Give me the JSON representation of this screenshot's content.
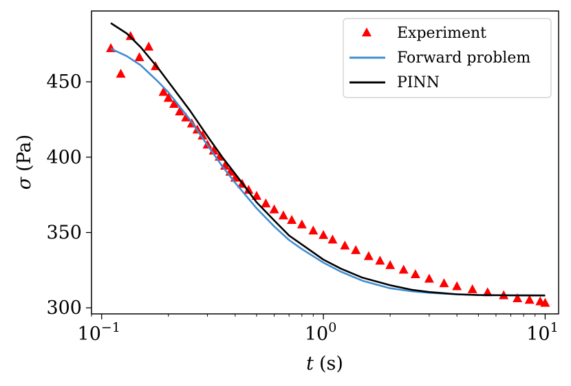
{
  "chart_data": {
    "type": "scatter",
    "xlabel": "t (s)",
    "xlabel_symbol": "t",
    "xlabel_unit": "(s)",
    "ylabel": "σ (Pa)",
    "ylabel_symbol": "σ",
    "ylabel_unit": "(Pa)",
    "x_scale": "log",
    "xlim": [
      0.09,
      11.5
    ],
    "ylim": [
      296,
      497
    ],
    "x_ticks": [
      {
        "value": 0.1,
        "base": "10",
        "exp": "−1"
      },
      {
        "value": 1,
        "base": "10",
        "exp": "0"
      },
      {
        "value": 10,
        "base": "10",
        "exp": "1"
      }
    ],
    "y_ticks": [
      {
        "value": 300,
        "label": "300"
      },
      {
        "value": 350,
        "label": "350"
      },
      {
        "value": 400,
        "label": "400"
      },
      {
        "value": 450,
        "label": "450"
      }
    ],
    "grid": false,
    "legend_position": "top-right",
    "series": [
      {
        "name": "Experiment",
        "kind": "scatter",
        "marker": "triangle",
        "color": "#ff0000",
        "x": [
          0.11,
          0.122,
          0.135,
          0.148,
          0.163,
          0.175,
          0.19,
          0.2,
          0.212,
          0.225,
          0.24,
          0.255,
          0.27,
          0.285,
          0.3,
          0.32,
          0.34,
          0.36,
          0.38,
          0.4,
          0.43,
          0.46,
          0.5,
          0.55,
          0.6,
          0.66,
          0.72,
          0.8,
          0.9,
          1.0,
          1.1,
          1.25,
          1.4,
          1.6,
          1.8,
          2.0,
          2.3,
          2.6,
          3.0,
          3.5,
          4.0,
          4.7,
          5.5,
          6.5,
          7.5,
          8.5,
          9.5,
          10.0
        ],
        "y": [
          472,
          455,
          480,
          466,
          473,
          460,
          443,
          439,
          435,
          430,
          426,
          422,
          418,
          414,
          408,
          404,
          400,
          394,
          390,
          386,
          382,
          378,
          374,
          369,
          365,
          361,
          358,
          355,
          351,
          348,
          345,
          341,
          338,
          334,
          331,
          328,
          325,
          322,
          319,
          316,
          314,
          312,
          310,
          308,
          306,
          305,
          304,
          303
        ]
      },
      {
        "name": "Forward problem",
        "kind": "line",
        "color": "#3f8dd0",
        "x": [
          0.11,
          0.13,
          0.15,
          0.18,
          0.2,
          0.25,
          0.3,
          0.35,
          0.4,
          0.5,
          0.6,
          0.7,
          0.8,
          1.0,
          1.2,
          1.5,
          2.0,
          2.5,
          3.0,
          4.0,
          5.0,
          7.0,
          10.0
        ],
        "y": [
          472,
          467,
          461,
          450,
          443,
          425,
          408,
          394,
          383,
          366,
          354,
          345,
          339,
          330,
          324,
          318,
          313,
          311,
          310,
          309,
          308.5,
          308.3,
          308.2
        ]
      },
      {
        "name": "PINN",
        "kind": "line",
        "color": "#000000",
        "x": [
          0.11,
          0.13,
          0.15,
          0.18,
          0.2,
          0.25,
          0.3,
          0.35,
          0.4,
          0.5,
          0.6,
          0.7,
          0.8,
          1.0,
          1.2,
          1.5,
          2.0,
          2.5,
          3.0,
          4.0,
          5.0,
          7.0,
          10.0
        ],
        "y": [
          489,
          482,
          473,
          459,
          450,
          431,
          414,
          400,
          389,
          370,
          358,
          348,
          342,
          332,
          326,
          320,
          315,
          312,
          310.5,
          309,
          308.5,
          308.3,
          308.2
        ]
      }
    ]
  }
}
